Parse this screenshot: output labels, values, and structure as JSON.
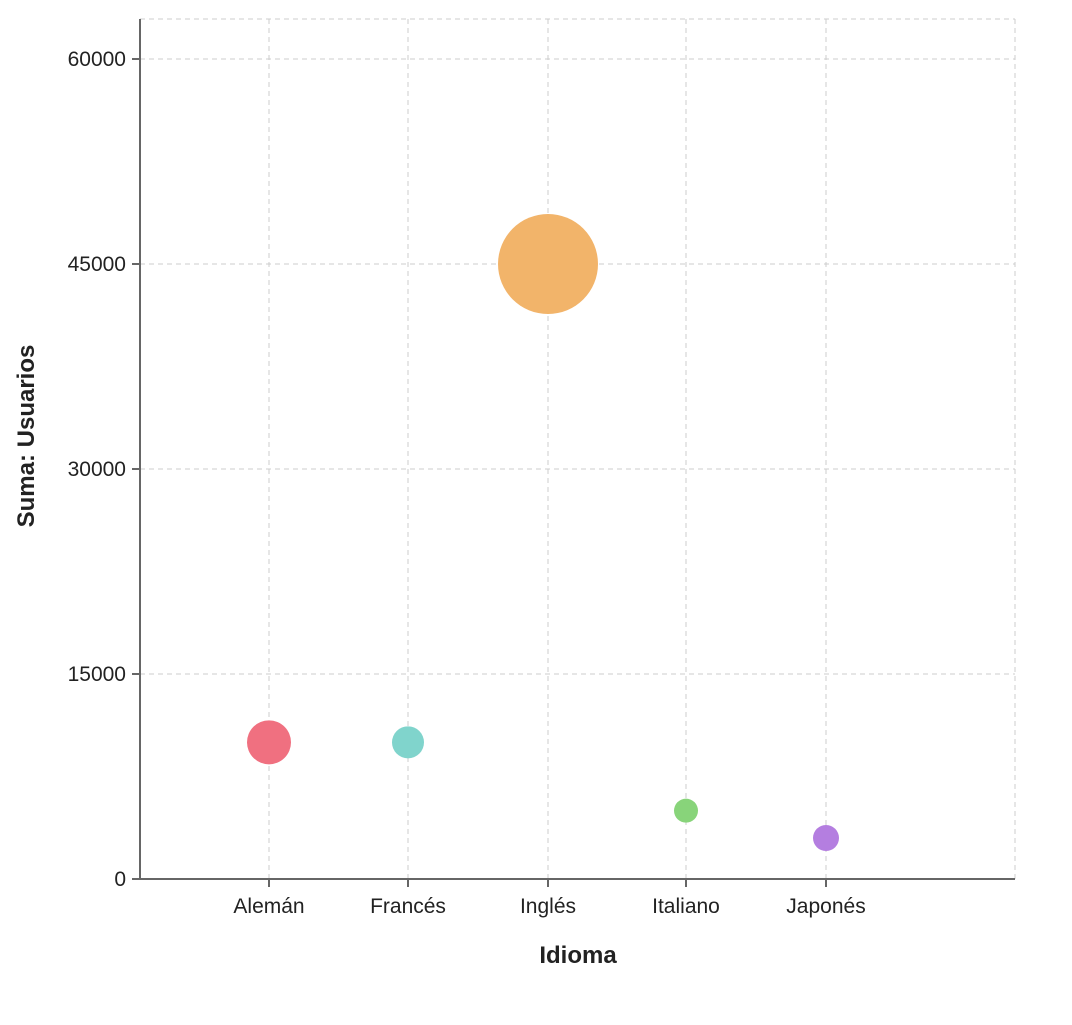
{
  "chart_data": {
    "type": "scatter",
    "title": "",
    "xlabel": "Idioma",
    "ylabel": "Suma: Usuarios",
    "categories": [
      "Alemán",
      "Francés",
      "Inglés",
      "Italiano",
      "Japonés"
    ],
    "values": [
      10000,
      10000,
      45000,
      5000,
      3000
    ],
    "bubble_radius_px": [
      22,
      16,
      50,
      12,
      13
    ],
    "colors": [
      "#f07080",
      "#80d4cc",
      "#f2b46a",
      "#88d47a",
      "#b47ee0"
    ],
    "yticks": [
      "0",
      "15000",
      "30000",
      "45000",
      "60000"
    ],
    "ylim": [
      0,
      63000
    ],
    "grid": true,
    "legend": "none"
  }
}
